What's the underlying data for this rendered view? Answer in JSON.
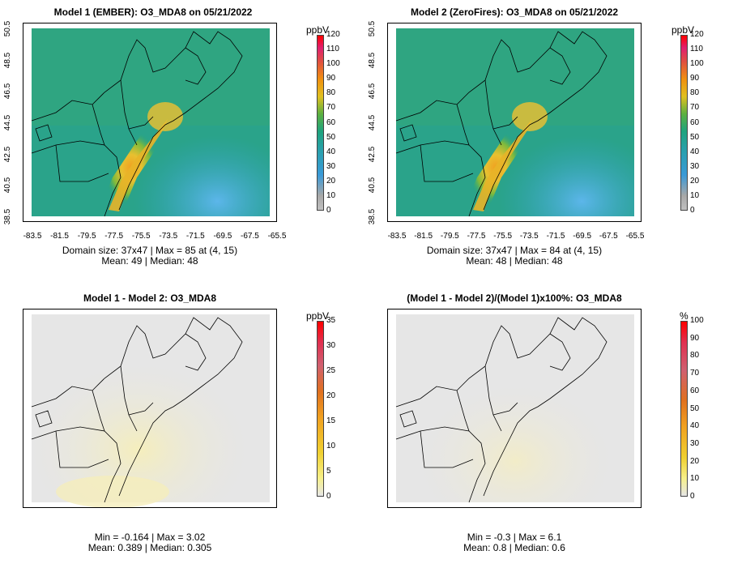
{
  "panels": [
    {
      "id": "p1",
      "title": "Model 1 (EMBER): O3_MDA8 on 05/21/2022",
      "stats_line1": "Domain size: 37x47 | Max = 85 at (4, 15)",
      "stats_line2": "Mean: 49 |  Median: 48",
      "unit": "ppbV",
      "colorbar_ticks": [
        "120",
        "110",
        "100",
        "90",
        "80",
        "70",
        "60",
        "50",
        "40",
        "30",
        "20",
        "10",
        "0"
      ]
    },
    {
      "id": "p2",
      "title": "Model 2 (ZeroFires): O3_MDA8 on 05/21/2022",
      "stats_line1": "Domain size: 37x47 | Max = 84 at (4, 15)",
      "stats_line2": "Mean: 48 |  Median: 48",
      "unit": "ppbV",
      "colorbar_ticks": [
        "120",
        "110",
        "100",
        "90",
        "80",
        "70",
        "60",
        "50",
        "40",
        "30",
        "20",
        "10",
        "0"
      ]
    },
    {
      "id": "p3",
      "title": "Model 1 - Model 2: O3_MDA8",
      "stats_line1": "Min = -0.164 | Max = 3.02",
      "stats_line2": "Mean: 0.389 |  Median: 0.305",
      "unit": "ppbV",
      "colorbar_ticks": [
        "35",
        "30",
        "25",
        "20",
        "15",
        "10",
        "5",
        "0"
      ]
    },
    {
      "id": "p4",
      "title": "(Model 1 - Model 2)/(Model 1)x100%: O3_MDA8",
      "stats_line1": "Min = -0.3 | Max = 6.1",
      "stats_line2": "Mean: 0.8 |  Median: 0.6",
      "unit": "%",
      "colorbar_ticks": [
        "100",
        "90",
        "80",
        "70",
        "60",
        "50",
        "40",
        "30",
        "20",
        "10",
        "0"
      ]
    }
  ],
  "x_ticks": [
    "-83.5",
    "-81.5",
    "-79.5",
    "-77.5",
    "-75.5",
    "-73.5",
    "-71.5",
    "-69.5",
    "-67.5",
    "-65.5"
  ],
  "y_ticks": [
    "50.5",
    "48.5",
    "46.5",
    "44.5",
    "42.5",
    "40.5",
    "38.5"
  ],
  "colors": {
    "ozone_low": "#4aa8e0",
    "ozone_mid": "#1a9e8a",
    "ozone_green": "#3fb04a",
    "ozone_high": "#f0b020",
    "ozone_peak": "#e07a10",
    "diff_bg": "#e6e6e6",
    "diff_tint": "#f4eec4",
    "border": "#000000"
  }
}
